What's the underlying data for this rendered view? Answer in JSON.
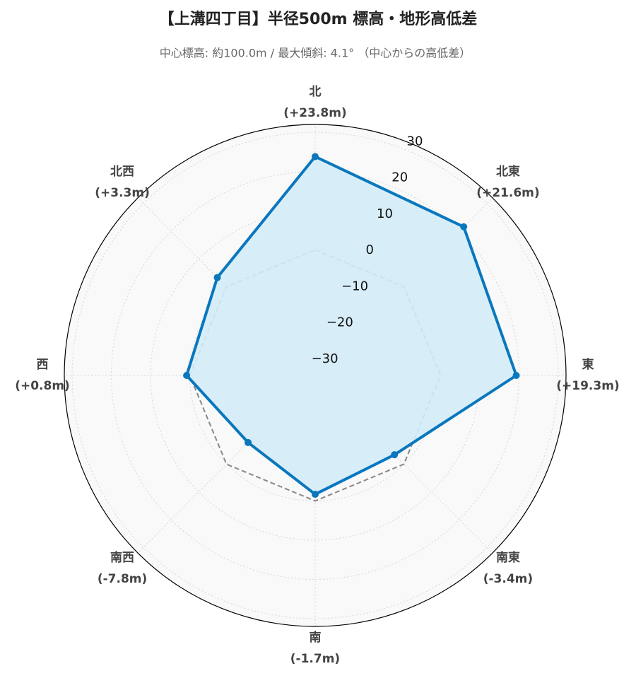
{
  "chart_data": {
    "type": "radar",
    "title": "【上溝四丁目】半径500m 標高・地形高低差",
    "subtitle": "中心標高: 約100.0m / 最大傾斜: 4.1° （中心からの高低差）",
    "categories": [
      "北",
      "北東",
      "東",
      "南東",
      "南",
      "南西",
      "西",
      "北西"
    ],
    "values": [
      23.8,
      21.6,
      19.3,
      -3.4,
      -1.7,
      -7.8,
      0.8,
      3.3
    ],
    "value_labels": [
      "(+23.8m)",
      "(+21.6m)",
      "(+19.3m)",
      "(-3.4m)",
      "(-1.7m)",
      "(-7.8m)",
      "(+0.8m)",
      "(+3.3m)"
    ],
    "color": "#0a77bd",
    "fill_color": "#d3ecf8",
    "reference_line": {
      "value": 0,
      "color": "#888888"
    },
    "ylim": [
      -32,
      32
    ],
    "yticks": [
      {
        "value": -30,
        "label": "−30"
      },
      {
        "value": -20,
        "label": "−20"
      },
      {
        "value": -10,
        "label": "−10"
      },
      0,
      10,
      20,
      30
    ],
    "grid": true
  }
}
